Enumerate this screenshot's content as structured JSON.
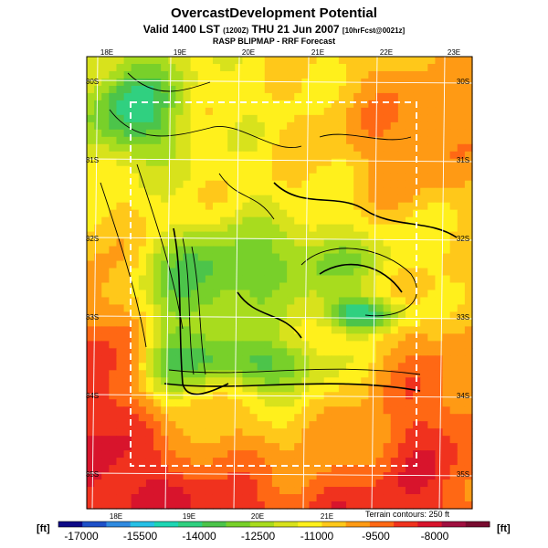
{
  "title": "OvercastDevelopment Potential",
  "valid_line": {
    "main": "Valid 1400 LST",
    "utc": "(1200Z)",
    "date": "THU 21 Jun 2007",
    "init": "[10hrFcst@0021z]"
  },
  "model_line": "RASP BLIPMAP - RRF Forecast",
  "terrain_note": "Terrain contours: 250 ft",
  "units": {
    "left": "[ft]",
    "right": "[ft]"
  },
  "map": {
    "lon_labels_top": [
      "18E",
      "19E",
      "20E",
      "21E",
      "22E",
      "23E"
    ],
    "lon_labels_bottom": [
      "18E",
      "19E",
      "20E",
      "21E"
    ],
    "lat_labels_left": [
      "30S",
      "31S",
      "32S",
      "33S",
      "34S",
      "35S"
    ],
    "lat_labels_right": [
      "30S",
      "31S",
      "32S",
      "33S",
      "34S",
      "35S"
    ]
  },
  "colorbar": {
    "labels": [
      "-17000",
      "-15500",
      "-14000",
      "-12500",
      "-11000",
      "-9500",
      "-8000"
    ],
    "colors": [
      "#0d0a86",
      "#1e50c8",
      "#2f8ae0",
      "#26c0e6",
      "#1ed6b4",
      "#30d080",
      "#4cc44a",
      "#78d02a",
      "#a8dc1e",
      "#d8e21c",
      "#fff01c",
      "#ffc81a",
      "#ff9a14",
      "#ff6814",
      "#f0321e",
      "#d8142c",
      "#a01040",
      "#780c30"
    ]
  },
  "chart_data": {
    "type": "heatmap",
    "title": "OvercastDevelopment Potential",
    "x_ticks": [
      "18E",
      "19E",
      "20E",
      "21E",
      "22E",
      "23E"
    ],
    "y_ticks": [
      "30S",
      "31S",
      "32S",
      "33S",
      "34S",
      "35S"
    ],
    "colorbar_range": [
      -17000,
      -8000
    ],
    "colorbar_ticks": [
      -17000,
      -15500,
      -14000,
      -12500,
      -11000,
      -9500,
      -8000
    ],
    "units": "ft"
  }
}
